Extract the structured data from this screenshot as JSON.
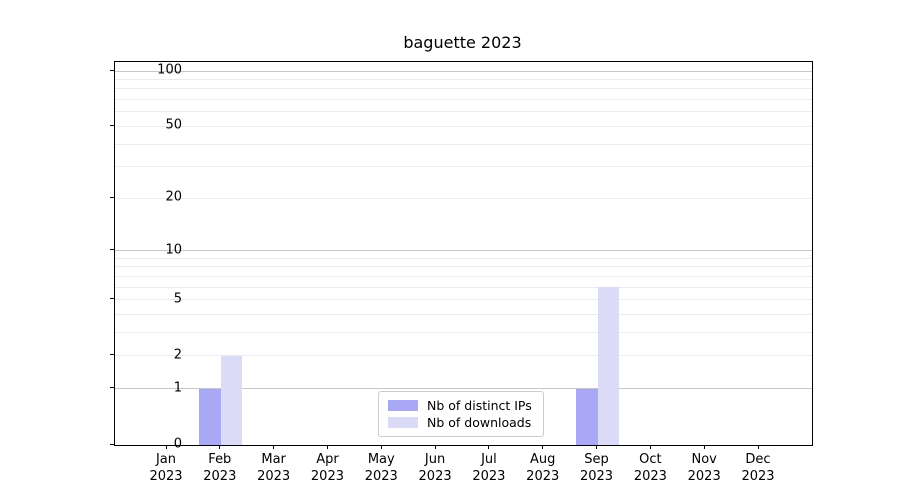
{
  "chart_data": {
    "type": "bar",
    "title": "baguette 2023",
    "categories": [
      "Jan",
      "Feb",
      "Mar",
      "Apr",
      "May",
      "Jun",
      "Jul",
      "Aug",
      "Sep",
      "Oct",
      "Nov",
      "Dec"
    ],
    "category_year": "2023",
    "series": [
      {
        "name": "Nb of distinct IPs",
        "color": "#a8a8f4",
        "values": [
          0,
          1,
          0,
          0,
          0,
          0,
          0,
          0,
          1,
          0,
          0,
          0
        ]
      },
      {
        "name": "Nb of downloads",
        "color": "#dbdbf8",
        "values": [
          0,
          2,
          0,
          0,
          0,
          0,
          0,
          0,
          6,
          0,
          0,
          0
        ]
      }
    ],
    "xlabel": "",
    "ylabel": "",
    "scale": "log1p",
    "ylim": [
      0,
      112
    ],
    "yticks": [
      0,
      1,
      2,
      5,
      10,
      20,
      50,
      100
    ],
    "minor_yticks": [
      3,
      4,
      6,
      7,
      8,
      9,
      30,
      40,
      60,
      70,
      80,
      90
    ],
    "grid": true,
    "grid_major_color": "#c6c6c6",
    "grid_minor_color": "#ebebeb",
    "legend_position": "lower center",
    "legend_entries": [
      "Nb of distinct IPs",
      "Nb of downloads"
    ]
  }
}
